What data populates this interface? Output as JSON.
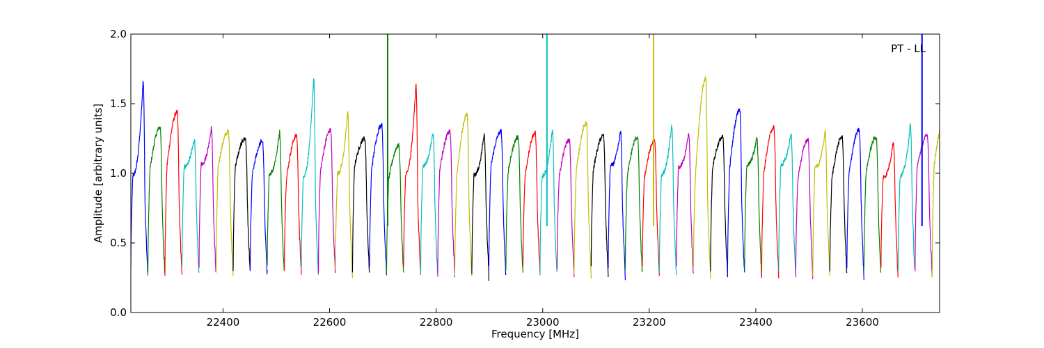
{
  "chart_data": {
    "type": "line",
    "title": "",
    "xlabel": "Frequency [MHz]",
    "ylabel": "Amplitude [arbitrary units]",
    "annotation": "PT - LL",
    "xlim": [
      22227,
      23745
    ],
    "ylim": [
      0.0,
      2.0
    ],
    "x_ticks": [
      22400,
      22600,
      22800,
      23000,
      23200,
      23400,
      23600
    ],
    "y_ticks": [
      0.0,
      0.5,
      1.0,
      1.5,
      2.0
    ],
    "x_tick_labels": [
      "22400",
      "22600",
      "22800",
      "23000",
      "23200",
      "23400",
      "23600"
    ],
    "y_tick_labels": [
      "0.0",
      "0.5",
      "1.0",
      "1.5",
      "2.0"
    ],
    "grid": false,
    "color_cycle": [
      "#0000ff",
      "#008000",
      "#ff0000",
      "#00bfbf",
      "#bf00bf",
      "#bfbf00",
      "#000000"
    ],
    "sub_band_width_mhz": 32,
    "sub_band_count": 48,
    "sub_band_peaks": [
      1.67,
      1.33,
      1.44,
      1.25,
      1.33,
      1.3,
      1.25,
      1.23,
      1.3,
      1.27,
      1.69,
      1.31,
      1.44,
      1.25,
      1.35,
      1.2,
      1.65,
      1.3,
      1.3,
      1.42,
      1.29,
      1.3,
      1.26,
      1.29,
      1.31,
      1.24,
      1.36,
      1.27,
      1.3,
      1.26,
      1.23,
      1.35,
      1.29,
      1.68,
      1.26,
      1.46,
      1.26,
      1.33,
      1.29,
      1.24,
      1.3,
      1.26,
      1.31,
      1.26,
      1.23,
      1.35,
      1.27,
      1.38
    ],
    "spikes": [
      {
        "x": 22709,
        "y_top": 2.0,
        "color": "#008000"
      },
      {
        "x": 23008,
        "y_top": 2.0,
        "color": "#00bfbf"
      },
      {
        "x": 23208,
        "y_top": 2.0,
        "color": "#bfbf00"
      },
      {
        "x": 23712,
        "y_top": 2.0,
        "color": "#0000ff"
      }
    ]
  }
}
